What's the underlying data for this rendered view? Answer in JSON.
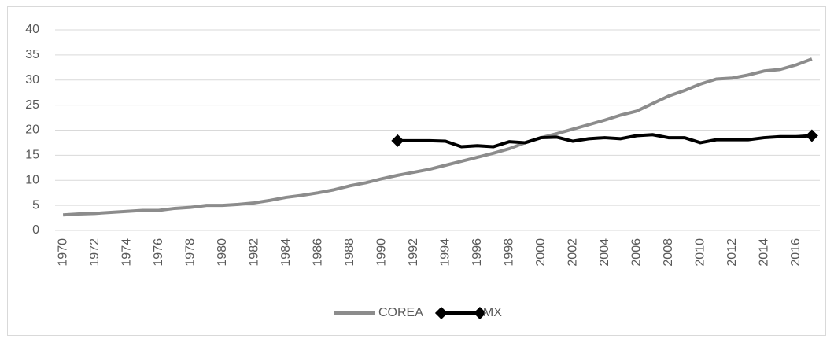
{
  "chart_data": {
    "type": "line",
    "categories": [
      "1970",
      null,
      "1972",
      null,
      "1974",
      null,
      "1976",
      null,
      "1978",
      null,
      "1980",
      null,
      "1982",
      null,
      "1984",
      null,
      "1986",
      null,
      "1988",
      null,
      "1990",
      null,
      "1992",
      null,
      "1994",
      null,
      "1996",
      null,
      "1998",
      null,
      "2000",
      null,
      "2002",
      null,
      "2004",
      null,
      "2006",
      null,
      "2008",
      null,
      "2010",
      null,
      "2012",
      null,
      "2014",
      null,
      "2016",
      null
    ],
    "series": [
      {
        "name": "COREA",
        "color": "#8c8c8c",
        "values": [
          3.1,
          3.3,
          3.4,
          3.6,
          3.8,
          4.0,
          4.0,
          4.4,
          4.6,
          5.0,
          5.0,
          5.2,
          5.5,
          6.0,
          6.6,
          7.0,
          7.5,
          8.1,
          8.9,
          9.5,
          10.3,
          11.0,
          11.6,
          12.2,
          13.0,
          13.8,
          14.6,
          15.4,
          16.3,
          17.5,
          18.5,
          19.3,
          20.2,
          21.1,
          22.0,
          23.0,
          23.8,
          25.3,
          26.8,
          27.9,
          29.2,
          30.2,
          30.4,
          31.0,
          31.8,
          32.1,
          33.0,
          34.2
        ]
      },
      {
        "name": "MX",
        "color": "#000000",
        "marker": "diamond",
        "values": [
          null,
          null,
          null,
          null,
          null,
          null,
          null,
          null,
          null,
          null,
          null,
          null,
          null,
          null,
          null,
          null,
          null,
          null,
          null,
          null,
          null,
          17.9,
          17.9,
          17.9,
          17.8,
          16.7,
          16.9,
          16.7,
          17.7,
          17.5,
          18.5,
          18.6,
          17.8,
          18.3,
          18.5,
          18.3,
          18.9,
          19.1,
          18.5,
          18.5,
          17.5,
          18.1,
          18.1,
          18.1,
          18.5,
          18.7,
          18.7,
          18.9
        ]
      }
    ],
    "ylim": [
      0,
      40
    ],
    "yticks": [
      0,
      5,
      10,
      15,
      20,
      25,
      30,
      35,
      40
    ],
    "grid": true,
    "legend": "bottom"
  }
}
